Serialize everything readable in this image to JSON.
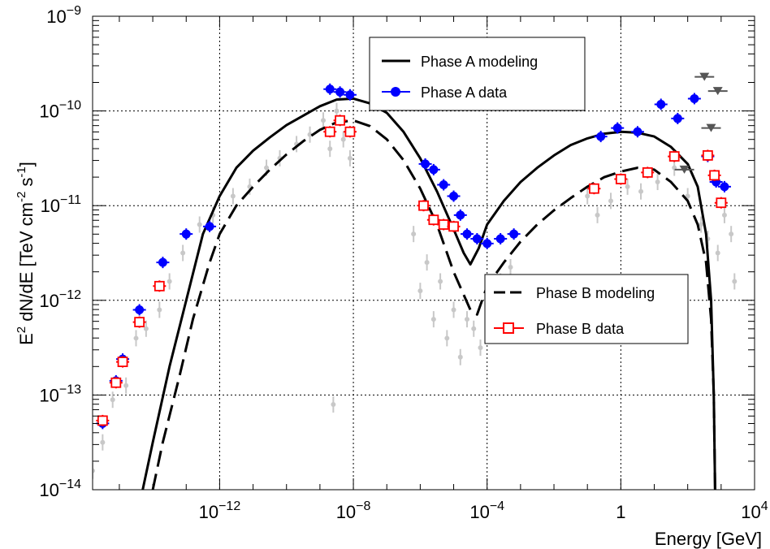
{
  "chart_data": {
    "type": "scatter",
    "xlabel": "Energy [GeV]",
    "ylabel_parts": {
      "a": "E",
      "b": "2",
      "c": " dN/dE [TeV cm",
      "d": "-2",
      "e": " s",
      "f": "-1",
      "g": "]"
    },
    "xscale": "log",
    "yscale": "log",
    "xlim_log10": [
      -15.8,
      4
    ],
    "ylim_log10": [
      -14,
      -9
    ],
    "grid": true,
    "x_ticks": [
      {
        "base": "10",
        "exp": "−12",
        "log": -12
      },
      {
        "base": "10",
        "exp": "−8",
        "log": -8
      },
      {
        "base": "10",
        "exp": "−4",
        "log": -4
      },
      {
        "base": "1",
        "exp": "",
        "log": 0
      },
      {
        "base": "10",
        "exp": "4",
        "log": 4
      }
    ],
    "y_ticks": [
      {
        "base": "10",
        "exp": "−14",
        "log": -14
      },
      {
        "base": "10",
        "exp": "−13",
        "log": -13
      },
      {
        "base": "10",
        "exp": "−12",
        "log": -12
      },
      {
        "base": "10",
        "exp": "−11",
        "log": -11
      },
      {
        "base": "10",
        "exp": "−10",
        "log": -10
      },
      {
        "base": "10",
        "exp": "−9",
        "log": -9
      }
    ],
    "legends": [
      {
        "position": "top-center",
        "entries": [
          {
            "label": "Phase A modeling",
            "style": "solid-line",
            "color": "#000000"
          },
          {
            "label": "Phase A data",
            "style": "filled-circle",
            "color": "#0000ff"
          }
        ]
      },
      {
        "position": "middle-right",
        "entries": [
          {
            "label": "Phase B modeling",
            "style": "dashed-line",
            "color": "#000000"
          },
          {
            "label": "Phase B data",
            "style": "open-square",
            "color": "#ff0000"
          }
        ]
      }
    ],
    "series": [
      {
        "name": "Phase A modeling",
        "style": "solid",
        "color": "#000000",
        "points_log10": [
          [
            -14.3,
            -14.0
          ],
          [
            -14.0,
            -13.5
          ],
          [
            -13.5,
            -12.7
          ],
          [
            -13.0,
            -12.0
          ],
          [
            -12.5,
            -11.3
          ],
          [
            -12.0,
            -10.9
          ],
          [
            -11.5,
            -10.6
          ],
          [
            -11.0,
            -10.42
          ],
          [
            -10.5,
            -10.28
          ],
          [
            -10.0,
            -10.15
          ],
          [
            -9.5,
            -10.05
          ],
          [
            -9.0,
            -9.95
          ],
          [
            -8.5,
            -9.88
          ],
          [
            -8.0,
            -9.87
          ],
          [
            -7.5,
            -9.92
          ],
          [
            -7.0,
            -10.02
          ],
          [
            -6.5,
            -10.22
          ],
          [
            -6.0,
            -10.5
          ],
          [
            -5.5,
            -10.85
          ],
          [
            -5.0,
            -11.25
          ],
          [
            -4.7,
            -11.5
          ],
          [
            -4.5,
            -11.62
          ],
          [
            -4.25,
            -11.45
          ],
          [
            -4.0,
            -11.2
          ],
          [
            -3.5,
            -10.95
          ],
          [
            -3.0,
            -10.75
          ],
          [
            -2.5,
            -10.6
          ],
          [
            -2.0,
            -10.47
          ],
          [
            -1.5,
            -10.36
          ],
          [
            -1.0,
            -10.29
          ],
          [
            -0.5,
            -10.24
          ],
          [
            0.0,
            -10.22
          ],
          [
            0.5,
            -10.23
          ],
          [
            1.0,
            -10.27
          ],
          [
            1.5,
            -10.38
          ],
          [
            2.0,
            -10.56
          ],
          [
            2.3,
            -10.8
          ],
          [
            2.55,
            -11.3
          ],
          [
            2.7,
            -12.0
          ],
          [
            2.78,
            -13.0
          ],
          [
            2.82,
            -14.0
          ]
        ]
      },
      {
        "name": "Phase B modeling",
        "style": "dashed",
        "color": "#000000",
        "points_log10": [
          [
            -14.0,
            -14.0
          ],
          [
            -13.7,
            -13.5
          ],
          [
            -13.2,
            -12.8
          ],
          [
            -12.8,
            -12.2
          ],
          [
            -12.3,
            -11.6
          ],
          [
            -12.0,
            -11.3
          ],
          [
            -11.5,
            -11.0
          ],
          [
            -11.0,
            -10.8
          ],
          [
            -10.5,
            -10.62
          ],
          [
            -10.0,
            -10.46
          ],
          [
            -9.5,
            -10.32
          ],
          [
            -9.0,
            -10.2
          ],
          [
            -8.5,
            -10.12
          ],
          [
            -8.0,
            -10.1
          ],
          [
            -7.5,
            -10.16
          ],
          [
            -7.0,
            -10.3
          ],
          [
            -6.5,
            -10.52
          ],
          [
            -6.0,
            -10.82
          ],
          [
            -5.5,
            -11.2
          ],
          [
            -5.0,
            -11.7
          ],
          [
            -4.5,
            -12.1
          ],
          [
            -4.3,
            -12.15
          ],
          [
            -4.0,
            -11.85
          ],
          [
            -3.5,
            -11.6
          ],
          [
            -3.0,
            -11.38
          ],
          [
            -2.5,
            -11.2
          ],
          [
            -2.0,
            -11.05
          ],
          [
            -1.5,
            -10.92
          ],
          [
            -1.0,
            -10.8
          ],
          [
            -0.5,
            -10.7
          ],
          [
            0.0,
            -10.64
          ],
          [
            0.5,
            -10.6
          ],
          [
            1.0,
            -10.62
          ],
          [
            1.5,
            -10.75
          ],
          [
            2.0,
            -10.95
          ],
          [
            2.3,
            -11.2
          ],
          [
            2.55,
            -11.6
          ],
          [
            2.7,
            -12.2
          ],
          [
            2.78,
            -13.0
          ],
          [
            2.82,
            -14.0
          ]
        ]
      },
      {
        "name": "Phase A data",
        "marker": "filled-circle",
        "color": "#0000ff",
        "points_log10": [
          [
            -15.5,
            -13.3
          ],
          [
            -15.1,
            -12.85
          ],
          [
            -14.9,
            -12.62
          ],
          [
            -14.4,
            -12.1
          ],
          [
            -13.7,
            -11.6
          ],
          [
            -13.0,
            -11.3
          ],
          [
            -12.3,
            -11.22
          ],
          [
            -8.7,
            -9.77
          ],
          [
            -8.4,
            -9.8
          ],
          [
            -8.1,
            -9.83
          ],
          [
            -5.85,
            -10.56
          ],
          [
            -5.6,
            -10.62
          ],
          [
            -5.3,
            -10.78
          ],
          [
            -5.0,
            -10.9
          ],
          [
            -4.8,
            -11.1
          ],
          [
            -4.6,
            -11.3
          ],
          [
            -4.3,
            -11.35
          ],
          [
            -4.0,
            -11.4
          ],
          [
            -3.6,
            -11.35
          ],
          [
            -3.2,
            -11.3
          ],
          [
            -0.6,
            -10.27
          ],
          [
            -0.1,
            -10.18
          ],
          [
            0.5,
            -10.22
          ],
          [
            1.2,
            -9.93
          ],
          [
            1.7,
            -10.08
          ],
          [
            2.2,
            -9.87
          ],
          [
            2.6,
            -10.48
          ],
          [
            2.85,
            -10.75
          ],
          [
            3.1,
            -10.8
          ]
        ]
      },
      {
        "name": "Phase B data",
        "marker": "open-square",
        "color": "#ff0000",
        "points_log10": [
          [
            -15.5,
            -13.27
          ],
          [
            -15.1,
            -12.87
          ],
          [
            -14.9,
            -12.65
          ],
          [
            -14.4,
            -12.23
          ],
          [
            -13.8,
            -11.85
          ],
          [
            -8.7,
            -10.22
          ],
          [
            -8.4,
            -10.1
          ],
          [
            -8.1,
            -10.22
          ],
          [
            -5.9,
            -11.0
          ],
          [
            -5.6,
            -11.15
          ],
          [
            -5.3,
            -11.2
          ],
          [
            -5.0,
            -11.22
          ],
          [
            -0.8,
            -10.82
          ],
          [
            0.0,
            -10.72
          ],
          [
            0.8,
            -10.65
          ],
          [
            1.6,
            -10.48
          ],
          [
            2.6,
            -10.47
          ],
          [
            2.8,
            -10.68
          ],
          [
            3.0,
            -10.97
          ]
        ]
      },
      {
        "name": "upper limits",
        "marker": "triangle-down",
        "color": "#555555",
        "points_log10": [
          [
            2.5,
            -9.64
          ],
          [
            2.9,
            -9.79
          ],
          [
            2.7,
            -10.18
          ],
          [
            1.9,
            -10.62
          ]
        ]
      },
      {
        "name": "archival data",
        "marker": "small-dot",
        "color": "#c8c8c8",
        "points_log10": [
          [
            -15.8,
            -13.8
          ],
          [
            -15.5,
            -13.5
          ],
          [
            -15.2,
            -13.05
          ],
          [
            -14.8,
            -12.9
          ],
          [
            -14.5,
            -12.4
          ],
          [
            -14.2,
            -12.3
          ],
          [
            -13.8,
            -12.1
          ],
          [
            -13.5,
            -11.8
          ],
          [
            -13.1,
            -11.5
          ],
          [
            -12.6,
            -11.2
          ],
          [
            -12.2,
            -11.1
          ],
          [
            -11.6,
            -10.9
          ],
          [
            -11.1,
            -10.8
          ],
          [
            -10.6,
            -10.6
          ],
          [
            -10.2,
            -10.5
          ],
          [
            -9.7,
            -10.35
          ],
          [
            -9.3,
            -10.25
          ],
          [
            -8.9,
            -10.1
          ],
          [
            -8.7,
            -10.4
          ],
          [
            -8.5,
            -10.0
          ],
          [
            -8.3,
            -10.3
          ],
          [
            -8.1,
            -10.5
          ],
          [
            -8.6,
            -13.1
          ],
          [
            -6.2,
            -11.3
          ],
          [
            -6.0,
            -11.9
          ],
          [
            -5.8,
            -11.6
          ],
          [
            -5.6,
            -12.2
          ],
          [
            -5.4,
            -11.8
          ],
          [
            -5.2,
            -12.4
          ],
          [
            -5.0,
            -12.1
          ],
          [
            -4.8,
            -12.6
          ],
          [
            -4.6,
            -12.2
          ],
          [
            -4.4,
            -12.3
          ],
          [
            -4.2,
            -12.5
          ],
          [
            -3.9,
            -12.0
          ],
          [
            -3.6,
            -11.8
          ],
          [
            -3.3,
            -11.65
          ],
          [
            -1.0,
            -10.9
          ],
          [
            -0.7,
            -11.1
          ],
          [
            -0.3,
            -10.95
          ],
          [
            0.2,
            -10.8
          ],
          [
            0.6,
            -10.85
          ],
          [
            1.1,
            -10.75
          ],
          [
            1.6,
            -10.6
          ],
          [
            2.0,
            -10.9
          ],
          [
            2.4,
            -11.2
          ],
          [
            2.6,
            -11.35
          ],
          [
            2.9,
            -11.5
          ],
          [
            3.1,
            -11.1
          ],
          [
            3.3,
            -11.3
          ],
          [
            3.4,
            -11.8
          ]
        ]
      }
    ]
  }
}
